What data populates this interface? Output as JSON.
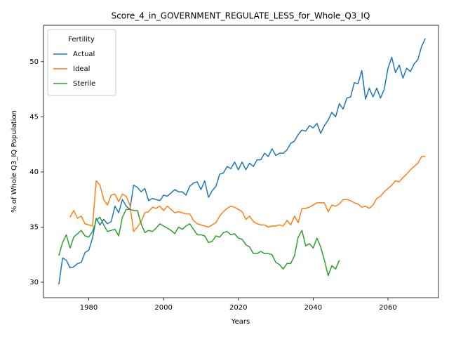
{
  "chart_data": {
    "type": "line",
    "title": "Score_4_in_GOVERNMENT_REGULATE_LESS_for_Whole_Q3_IQ",
    "x_label": "Years",
    "y_label": "% of Whole Q3_IQ Population",
    "legend_title": "Fertility",
    "legend": "upper left",
    "x": [
      1972,
      1973,
      1974,
      1975,
      1976,
      1977,
      1978,
      1979,
      1980,
      1981,
      1982,
      1983,
      1984,
      1985,
      1986,
      1987,
      1988,
      1989,
      1990,
      1991,
      1992,
      1993,
      1994,
      1995,
      1996,
      1997,
      1998,
      1999,
      2000,
      2001,
      2002,
      2003,
      2004,
      2005,
      2006,
      2007,
      2008,
      2009,
      2010,
      2011,
      2012,
      2013,
      2014,
      2015,
      2016,
      2017,
      2018,
      2019,
      2020,
      2021,
      2022,
      2023,
      2024,
      2025,
      2026,
      2027,
      2028,
      2029,
      2030,
      2031,
      2032,
      2033,
      2034,
      2035,
      2036,
      2037,
      2038,
      2039,
      2040,
      2041,
      2042,
      2043,
      2044,
      2045,
      2046,
      2047,
      2048,
      2049,
      2050,
      2051,
      2052,
      2053,
      2054,
      2055,
      2056,
      2057,
      2058,
      2059,
      2060,
      2061,
      2062,
      2063,
      2064,
      2065,
      2066,
      2067,
      2068,
      2069,
      2070
    ],
    "series": [
      {
        "name": "Actual",
        "color": "#1f77b4",
        "values": [
          29.8,
          32.2,
          32.0,
          31.3,
          31.4,
          31.7,
          31.8,
          32.7,
          32.9,
          34.0,
          35.8,
          35.2,
          35.7,
          35.3,
          35.5,
          36.9,
          36.3,
          37.5,
          36.9,
          36.6,
          38.8,
          38.6,
          38.2,
          38.5,
          37.4,
          37.6,
          37.5,
          37.4,
          37.9,
          37.8,
          38.1,
          38.4,
          38.2,
          38.2,
          37.9,
          38.7,
          39.0,
          39.1,
          38.4,
          39.2,
          37.7,
          38.3,
          38.7,
          39.8,
          39.9,
          40.5,
          40.3,
          40.9,
          40.2,
          40.9,
          40.2,
          40.8,
          40.5,
          41.1,
          41.1,
          41.7,
          41.4,
          42.1,
          41.5,
          41.7,
          41.7,
          42.0,
          42.6,
          42.8,
          43.4,
          43.8,
          43.7,
          44.2,
          44.0,
          44.4,
          43.5,
          44.2,
          44.7,
          45.4,
          45.0,
          46.2,
          45.7,
          46.7,
          46.8,
          48.1,
          48.0,
          49.2,
          46.6,
          47.6,
          46.8,
          47.6,
          46.7,
          47.5,
          49.4,
          50.4,
          49.0,
          49.7,
          48.5,
          49.4,
          49.1,
          49.8,
          50.2,
          51.4,
          52.1
        ]
      },
      {
        "name": "Ideal",
        "color": "#ff7f0e",
        "values": [
          null,
          null,
          null,
          35.9,
          36.5,
          35.8,
          36.0,
          35.3,
          35.2,
          35.1,
          39.2,
          38.8,
          37.5,
          37.0,
          37.9,
          38.0,
          37.3,
          38.0,
          37.8,
          37.0,
          34.6,
          35.0,
          35.5,
          36.3,
          36.4,
          36.8,
          36.7,
          36.9,
          36.5,
          36.9,
          36.6,
          36.3,
          36.4,
          36.3,
          36.2,
          36.2,
          35.6,
          35.3,
          35.2,
          35.1,
          35.0,
          35.2,
          35.4,
          36.0,
          36.4,
          36.7,
          36.9,
          36.8,
          36.6,
          36.4,
          35.7,
          36.0,
          35.5,
          35.3,
          35.2,
          35.2,
          35.0,
          35.1,
          35.1,
          35.2,
          35.1,
          35.6,
          35.2,
          36.0,
          35.4,
          36.7,
          36.7,
          36.8,
          37.0,
          37.2,
          37.2,
          37.2,
          36.4,
          37.0,
          36.9,
          37.1,
          37.5,
          37.5,
          37.4,
          37.2,
          37.1,
          36.8,
          36.9,
          36.7,
          37.0,
          37.6,
          37.8,
          38.2,
          38.5,
          38.8,
          39.2,
          39.1,
          39.5,
          39.8,
          40.2,
          40.5,
          40.8,
          41.4,
          41.4
        ]
      },
      {
        "name": "Sterile",
        "color": "#2ca02c",
        "values": [
          32.4,
          33.6,
          34.3,
          33.1,
          34.1,
          34.4,
          34.7,
          34.2,
          34.1,
          34.6,
          35.6,
          35.9,
          35.2,
          34.6,
          34.7,
          34.8,
          34.2,
          35.9,
          36.6,
          36.6,
          36.5,
          36.5,
          35.3,
          34.5,
          34.7,
          34.6,
          34.9,
          35.3,
          35.1,
          34.9,
          34.7,
          34.4,
          35.0,
          34.8,
          35.1,
          35.3,
          34.8,
          34.3,
          34.3,
          34.2,
          33.6,
          33.7,
          34.2,
          34.1,
          34.5,
          34.6,
          34.3,
          34.4,
          34.0,
          33.9,
          33.4,
          33.2,
          32.6,
          32.6,
          32.8,
          32.6,
          32.6,
          32.5,
          31.8,
          31.6,
          31.2,
          31.7,
          31.7,
          32.4,
          34.1,
          34.7,
          33.3,
          33.5,
          33.1,
          34.0,
          33.2,
          32.0,
          30.6,
          31.5,
          31.2,
          32.0,
          null,
          null,
          null,
          null,
          null,
          null,
          null,
          null,
          null,
          null,
          null,
          null,
          null,
          null,
          null,
          null,
          null,
          null,
          null,
          null,
          null,
          null,
          null
        ]
      }
    ],
    "xlim": [
      1967.9,
      2073.5
    ],
    "ylim": [
      28.6,
      53.3
    ],
    "xticks": [
      1980,
      2000,
      2020,
      2040,
      2060
    ],
    "yticks": [
      30,
      35,
      40,
      45,
      50
    ]
  }
}
